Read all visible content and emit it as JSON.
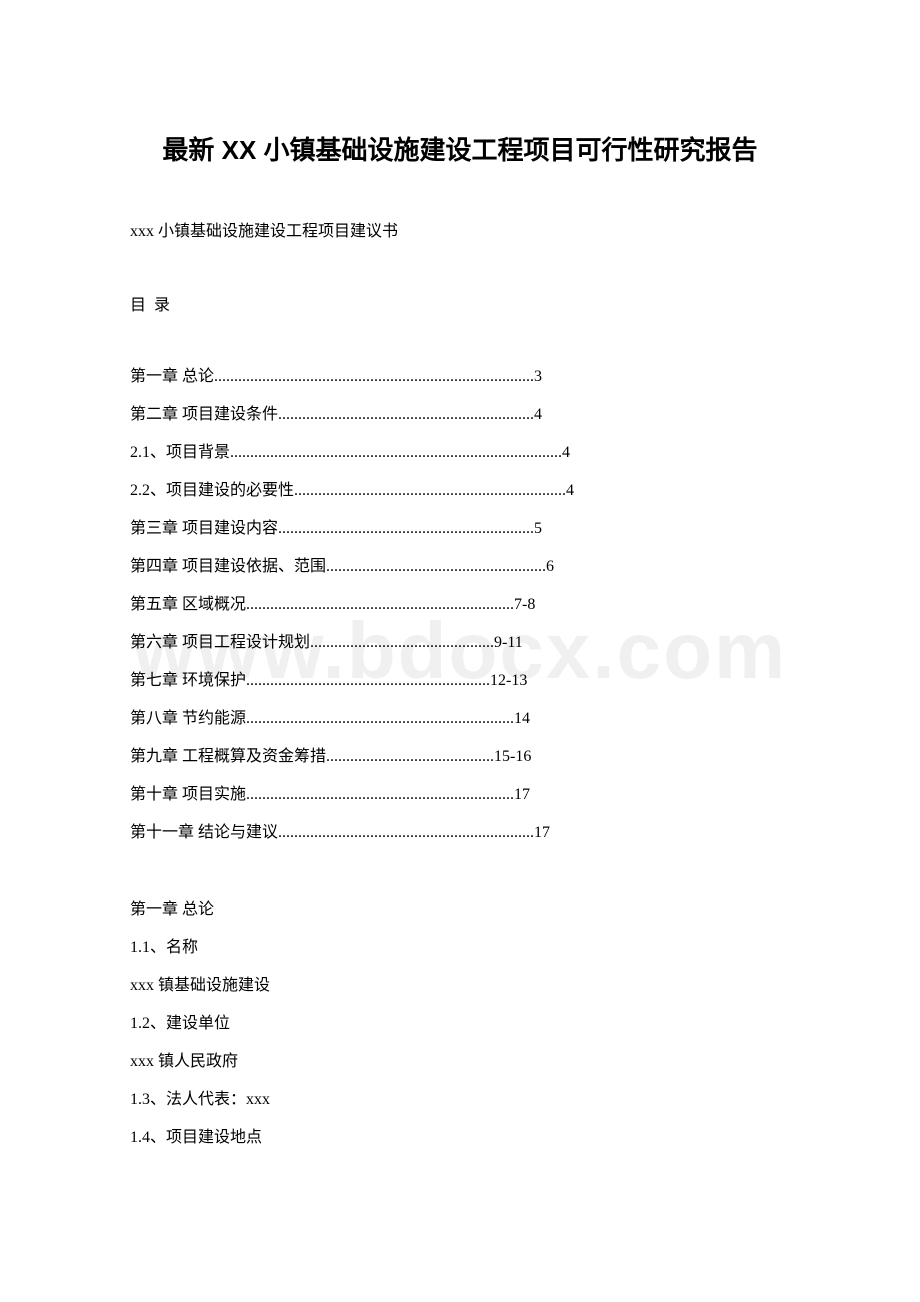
{
  "watermark": "www.bdocx.com",
  "title": "最新 XX 小镇基础设施建设工程项目可行性研究报告",
  "subtitle": "xxx 小镇基础设施建设工程项目建议书",
  "toc_heading": "目 录",
  "toc": [
    {
      "label": "第一章 总论",
      "dots": "................................................................................",
      "page": "3"
    },
    {
      "label": "第二章 项目建设条件",
      "dots": "................................................................",
      "page": "4"
    },
    {
      "label": "2.1、项目背景",
      "dots": "...................................................................................",
      "page": "4"
    },
    {
      "label": "2.2、项目建设的必要性",
      "dots": "....................................................................",
      "page": "4"
    },
    {
      "label": "第三章 项目建设内容",
      "dots": "................................................................",
      "page": "5"
    },
    {
      "label": "第四章 项目建设依据、范围",
      "dots": ".......................................................",
      "page": "6"
    },
    {
      "label": "第五章 区域概况",
      "dots": "...................................................................",
      "page": "7-8"
    },
    {
      "label": "第六章 项目工程设计规划",
      "dots": "..............................................",
      "page": "9-11"
    },
    {
      "label": "第七章 环境保护",
      "dots": ".............................................................",
      "page": "12-13"
    },
    {
      "label": "第八章 节约能源",
      "dots": "...................................................................",
      "page": "14"
    },
    {
      "label": "第九章 工程概算及资金筹措",
      "dots": "..........................................",
      "page": "15-16"
    },
    {
      "label": "第十章 项目实施",
      "dots": "...................................................................",
      "page": "17"
    },
    {
      "label": "第十一章 结论与建议",
      "dots": "................................................................",
      "page": "17"
    }
  ],
  "section1_heading": "第一章 总论",
  "body": [
    "1.1、名称",
    "xxx 镇基础设施建设",
    "1.2、建设单位",
    "xxx 镇人民政府",
    "1.3、法人代表：xxx",
    "1.4、项目建设地点"
  ]
}
